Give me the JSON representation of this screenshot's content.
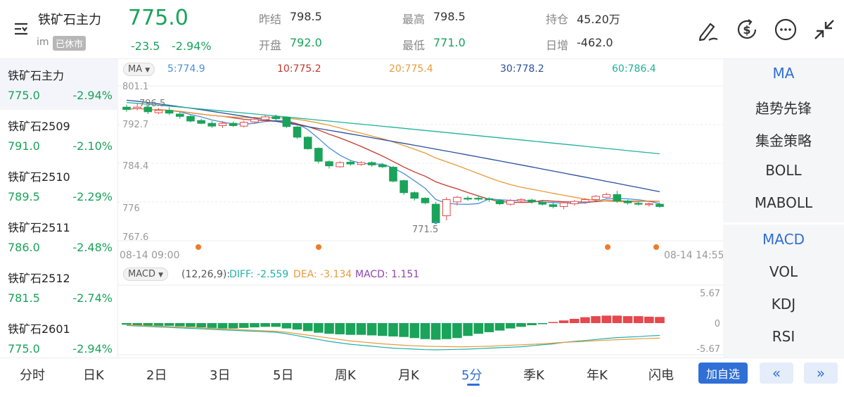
{
  "header": {
    "instrument_title": "铁矿石主力",
    "im_label": "im",
    "market_status": "已休市",
    "last_price": "775.0",
    "change": "-23.5",
    "change_pct": "-2.94%",
    "stats": {
      "prev_close_label": "昨结",
      "prev_close": "798.5",
      "open_label": "开盘",
      "open": "792.0",
      "high_label": "最高",
      "high": "798.5",
      "low_label": "最低",
      "low": "771.0",
      "oi_label": "持仓",
      "oi": "45.20万",
      "oi_change_label": "日增",
      "oi_change": "-462.0"
    },
    "icons": [
      "menu-icon",
      "draw-icon",
      "currency-icon",
      "more-icon",
      "shrink-icon"
    ]
  },
  "instruments": [
    {
      "name": "铁矿石主力",
      "price": "775.0",
      "pct": "-2.94%",
      "active": true
    },
    {
      "name": "铁矿石2509",
      "price": "791.0",
      "pct": "-2.10%",
      "active": false
    },
    {
      "name": "铁矿石2510",
      "price": "789.5",
      "pct": "-2.29%",
      "active": false
    },
    {
      "name": "铁矿石2511",
      "price": "786.0",
      "pct": "-2.48%",
      "active": false
    },
    {
      "name": "铁矿石2512",
      "price": "781.5",
      "pct": "-2.74%",
      "active": false
    },
    {
      "name": "铁矿石2601",
      "price": "775.0",
      "pct": "-2.94%",
      "active": false
    }
  ],
  "indicators": {
    "main": [
      "MA",
      "趋势先锋",
      "集金策略",
      "BOLL",
      "MABOLL"
    ],
    "sub": [
      "MACD",
      "VOL",
      "KDJ",
      "RSI"
    ],
    "active_main": "MA",
    "active_sub": "MACD"
  },
  "ma_legend": {
    "selector": "MA",
    "items": [
      {
        "label": "5:774.9",
        "color": "#4a90d9"
      },
      {
        "label": "10:775.2",
        "color": "#c0392b"
      },
      {
        "label": "20:775.4",
        "color": "#e89a3c"
      },
      {
        "label": "30:778.2",
        "color": "#2c4f9e"
      },
      {
        "label": "60:786.4",
        "color": "#20b29a"
      }
    ]
  },
  "macd_legend": {
    "selector": "MACD",
    "params": "(12,26,9):",
    "diff": "DIFF: -2.559",
    "dea": "DEA: -3.134",
    "macd": "MACD: 1.151"
  },
  "chart_data": [
    {
      "type": "candlestick",
      "title": "",
      "x_start_label": "08-14 09:00",
      "x_end_label": "08-14 14:55",
      "y_ticks": [
        "801.1",
        "792.7",
        "784.4",
        "776",
        "767.6"
      ],
      "ylim": [
        767.6,
        801.1
      ],
      "annotations": [
        {
          "label": "796.5"
        },
        {
          "label": "771.5"
        }
      ],
      "candles": [
        [
          796.5,
          796.0,
          797.0,
          795.5
        ],
        [
          796.2,
          796.5,
          797.2,
          795.8
        ],
        [
          796.5,
          795.5,
          796.8,
          795.0
        ],
        [
          795.3,
          795.8,
          796.3,
          795.0
        ],
        [
          795.8,
          795.2,
          796.5,
          794.8
        ],
        [
          795.0,
          794.5,
          795.5,
          794.0
        ],
        [
          794.5,
          793.5,
          794.8,
          793.2
        ],
        [
          793.6,
          793.0,
          794.0,
          792.8
        ],
        [
          793.0,
          792.4,
          793.5,
          792.0
        ],
        [
          792.5,
          793.0,
          793.5,
          792.0
        ],
        [
          793.0,
          792.5,
          793.4,
          792.2
        ],
        [
          792.4,
          793.2,
          793.6,
          792.1
        ],
        [
          793.3,
          793.9,
          794.4,
          793.0
        ],
        [
          793.8,
          794.4,
          794.8,
          793.5
        ],
        [
          794.4,
          794.0,
          794.9,
          793.6
        ],
        [
          794.3,
          792.3,
          794.5,
          792.0
        ],
        [
          792.2,
          790.0,
          792.4,
          789.6
        ],
        [
          790.0,
          787.5,
          790.2,
          787.3
        ],
        [
          787.6,
          784.8,
          787.8,
          784.3
        ],
        [
          784.7,
          783.8,
          785.0,
          783.2
        ],
        [
          783.6,
          784.5,
          784.8,
          783.4
        ],
        [
          784.6,
          784.2,
          785.0,
          783.8
        ],
        [
          784.1,
          784.5,
          784.8,
          783.8
        ],
        [
          784.5,
          784.0,
          784.8,
          783.6
        ],
        [
          784.0,
          783.6,
          784.4,
          783.3
        ],
        [
          783.5,
          780.5,
          783.8,
          780.2
        ],
        [
          780.6,
          778.0,
          780.8,
          777.5
        ],
        [
          778.0,
          776.8,
          778.3,
          776.3
        ],
        [
          776.8,
          775.8,
          777.0,
          775.5
        ],
        [
          775.5,
          771.5,
          776.0,
          771.5
        ],
        [
          773.0,
          776.5,
          777.0,
          772.0
        ],
        [
          776.0,
          777.0,
          777.3,
          775.2
        ],
        [
          776.8,
          776.6,
          777.3,
          776.2
        ],
        [
          776.8,
          776.6,
          777.3,
          776.2
        ],
        [
          776.7,
          776.5,
          777.0,
          776.0
        ],
        [
          776.3,
          775.6,
          776.6,
          775.3
        ],
        [
          775.5,
          776.3,
          776.6,
          775.2
        ],
        [
          776.2,
          776.5,
          776.8,
          775.8
        ],
        [
          776.4,
          776.0,
          776.7,
          775.6
        ],
        [
          775.9,
          775.5,
          776.2,
          775.2
        ],
        [
          775.4,
          775.0,
          775.8,
          774.6
        ],
        [
          775.0,
          775.8,
          776.0,
          774.4
        ],
        [
          775.6,
          776.1,
          776.4,
          775.2
        ],
        [
          776.0,
          776.5,
          776.8,
          775.6
        ],
        [
          776.5,
          777.2,
          777.5,
          776.2
        ],
        [
          777.0,
          777.6,
          778.0,
          776.8
        ],
        [
          777.6,
          776.2,
          778.4,
          775.8
        ],
        [
          776.2,
          775.8,
          776.5,
          775.4
        ],
        [
          775.7,
          775.5,
          776.0,
          775.2
        ],
        [
          775.4,
          775.6,
          775.9,
          775.0
        ],
        [
          775.5,
          775.0,
          775.8,
          774.7
        ]
      ]
    },
    {
      "type": "bar",
      "title": "",
      "y_ticks": [
        "5.67",
        "0",
        "-5.67"
      ],
      "ylim": [
        -5.67,
        5.67
      ],
      "series_names": [
        "DIFF",
        "DEA",
        "MACD"
      ],
      "macd": [
        -0.3,
        -0.5,
        -0.6,
        -0.6,
        -0.5,
        -0.6,
        -0.7,
        -0.8,
        -0.9,
        -1.0,
        -1.0,
        -0.9,
        -0.8,
        -0.7,
        -0.7,
        -1.0,
        -1.2,
        -1.5,
        -1.8,
        -2.0,
        -2.1,
        -2.2,
        -2.2,
        -2.3,
        -2.4,
        -2.5,
        -2.6,
        -2.8,
        -3.0,
        -3.1,
        -3.0,
        -2.8,
        -2.4,
        -2.0,
        -1.7,
        -1.4,
        -1.0,
        -0.7,
        -0.4,
        -0.2,
        0.2,
        0.5,
        0.8,
        1.1,
        1.3,
        1.4,
        1.4,
        1.3,
        1.3,
        1.2,
        1.15
      ],
      "diff": [
        -0.5,
        -0.6,
        -0.7,
        -0.8,
        -0.9,
        -1.0,
        -1.1,
        -1.2,
        -1.3,
        -1.4,
        -1.5,
        -1.6,
        -1.7,
        -1.8,
        -1.9,
        -2.2,
        -2.6,
        -3.0,
        -3.4,
        -3.8,
        -4.1,
        -4.4,
        -4.6,
        -4.8,
        -5.0,
        -5.2,
        -5.3,
        -5.4,
        -5.5,
        -5.55,
        -5.5,
        -5.45,
        -5.4,
        -5.3,
        -5.2,
        -5.1,
        -5.0,
        -4.9,
        -4.7,
        -4.5,
        -4.3,
        -4.0,
        -3.8,
        -3.6,
        -3.4,
        -3.2,
        -3.0,
        -2.9,
        -2.8,
        -2.65,
        -2.56
      ],
      "dea": [
        -0.4,
        -0.5,
        -0.6,
        -0.6,
        -0.7,
        -0.8,
        -0.9,
        -1.0,
        -1.1,
        -1.2,
        -1.3,
        -1.4,
        -1.5,
        -1.6,
        -1.7,
        -1.9,
        -2.2,
        -2.5,
        -2.8,
        -3.1,
        -3.4,
        -3.7,
        -3.9,
        -4.1,
        -4.3,
        -4.45,
        -4.6,
        -4.7,
        -4.8,
        -4.85,
        -4.88,
        -4.9,
        -4.9,
        -4.85,
        -4.8,
        -4.7,
        -4.6,
        -4.5,
        -4.4,
        -4.3,
        -4.15,
        -4.0,
        -3.9,
        -3.8,
        -3.65,
        -3.55,
        -3.45,
        -3.35,
        -3.25,
        -3.18,
        -3.13
      ]
    }
  ],
  "bottom_bar": {
    "periods": [
      "分时",
      "日K",
      "2日",
      "3日",
      "5日",
      "周K",
      "月K",
      "5分",
      "季K",
      "年K",
      "闪电"
    ],
    "active_period": "5分",
    "watch_label": "加自选",
    "prev_label": "«",
    "next_label": "»"
  }
}
